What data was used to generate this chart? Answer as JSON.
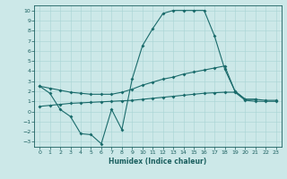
{
  "xlabel": "Humidex (Indice chaleur)",
  "bg_color": "#cce8e8",
  "line_color": "#1a6b6b",
  "xlim": [
    -0.5,
    23.5
  ],
  "ylim": [
    -3.5,
    10.5
  ],
  "xticks": [
    0,
    1,
    2,
    3,
    4,
    5,
    6,
    7,
    8,
    9,
    10,
    11,
    12,
    13,
    14,
    15,
    16,
    17,
    18,
    19,
    20,
    21,
    22,
    23
  ],
  "yticks": [
    -3,
    -2,
    -1,
    0,
    1,
    2,
    3,
    4,
    5,
    6,
    7,
    8,
    9,
    10
  ],
  "grid_color": "#a8d4d4",
  "font_color": "#1a5f5f",
  "line1_x": [
    0,
    1,
    2,
    3,
    4,
    5,
    6,
    7,
    8,
    9,
    10,
    11,
    12,
    13,
    14,
    15,
    16,
    17,
    18,
    19,
    20,
    21
  ],
  "line1_y": [
    2.5,
    1.8,
    0.2,
    -0.5,
    -2.2,
    -2.3,
    -3.2,
    0.2,
    -1.8,
    3.2,
    6.5,
    8.2,
    9.7,
    10.0,
    10.0,
    10.0,
    10.0,
    7.5,
    4.2,
    2.0,
    1.2,
    1.2
  ],
  "line2_x": [
    0,
    1,
    2,
    3,
    4,
    5,
    6,
    7,
    8,
    9,
    10,
    11,
    12,
    13,
    14,
    15,
    16,
    17,
    18,
    19,
    20,
    21,
    22,
    23
  ],
  "line2_y": [
    2.5,
    2.3,
    2.1,
    1.9,
    1.8,
    1.7,
    1.7,
    1.7,
    1.9,
    2.2,
    2.6,
    2.9,
    3.2,
    3.4,
    3.7,
    3.9,
    4.1,
    4.3,
    4.5,
    2.0,
    1.2,
    1.2,
    1.1,
    1.1
  ],
  "line3_x": [
    0,
    1,
    2,
    3,
    4,
    5,
    6,
    7,
    8,
    9,
    10,
    11,
    12,
    13,
    14,
    15,
    16,
    17,
    18,
    19,
    20,
    21,
    22,
    23
  ],
  "line3_y": [
    0.5,
    0.6,
    0.7,
    0.8,
    0.85,
    0.9,
    0.95,
    1.0,
    1.05,
    1.1,
    1.2,
    1.3,
    1.4,
    1.5,
    1.6,
    1.7,
    1.8,
    1.85,
    1.9,
    1.9,
    1.1,
    1.0,
    1.0,
    1.0
  ]
}
